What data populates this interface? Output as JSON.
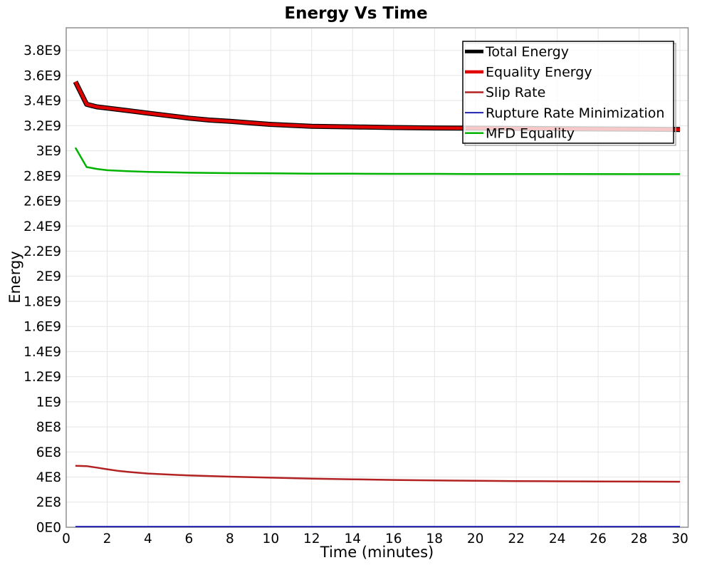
{
  "chart_data": {
    "type": "line",
    "title": "Energy Vs Time",
    "xlabel": "Time (minutes)",
    "ylabel": "Energy",
    "xlim": [
      0,
      30.4
    ],
    "ylim": [
      0,
      3980000000.0
    ],
    "grid": true,
    "legend_position": "top-right",
    "colors": {
      "grid": "#e5e5e5",
      "plot_border": "#8f8f8f",
      "legend_border": "#000000",
      "legend_shadow": "#aaaaaa"
    },
    "x_ticks": [
      {
        "label": "0",
        "value": 0
      },
      {
        "label": "2",
        "value": 2
      },
      {
        "label": "4",
        "value": 4
      },
      {
        "label": "6",
        "value": 6
      },
      {
        "label": "8",
        "value": 8
      },
      {
        "label": "10",
        "value": 10
      },
      {
        "label": "12",
        "value": 12
      },
      {
        "label": "14",
        "value": 14
      },
      {
        "label": "16",
        "value": 16
      },
      {
        "label": "18",
        "value": 18
      },
      {
        "label": "20",
        "value": 20
      },
      {
        "label": "22",
        "value": 22
      },
      {
        "label": "24",
        "value": 24
      },
      {
        "label": "26",
        "value": 26
      },
      {
        "label": "28",
        "value": 28
      },
      {
        "label": "30",
        "value": 30
      }
    ],
    "y_ticks": [
      {
        "label": "0E0",
        "value": 0
      },
      {
        "label": "2E8",
        "value": 200000000.0
      },
      {
        "label": "4E8",
        "value": 400000000.0
      },
      {
        "label": "6E8",
        "value": 600000000.0
      },
      {
        "label": "8E8",
        "value": 800000000.0
      },
      {
        "label": "1E9",
        "value": 1000000000.0
      },
      {
        "label": "1.2E9",
        "value": 1200000000.0
      },
      {
        "label": "1.4E9",
        "value": 1400000000.0
      },
      {
        "label": "1.6E9",
        "value": 1600000000.0
      },
      {
        "label": "1.8E9",
        "value": 1800000000.0
      },
      {
        "label": "2E9",
        "value": 2000000000.0
      },
      {
        "label": "2.2E9",
        "value": 2200000000.0
      },
      {
        "label": "2.4E9",
        "value": 2400000000.0
      },
      {
        "label": "2.6E9",
        "value": 2600000000.0
      },
      {
        "label": "2.8E9",
        "value": 2800000000.0
      },
      {
        "label": "3E9",
        "value": 3000000000.0
      },
      {
        "label": "3.2E9",
        "value": 3200000000.0
      },
      {
        "label": "3.4E9",
        "value": 3400000000.0
      },
      {
        "label": "3.6E9",
        "value": 3600000000.0
      },
      {
        "label": "3.8E9",
        "value": 3800000000.0
      }
    ],
    "series": [
      {
        "name": "Total Energy",
        "color": "#000000",
        "line_width": 7,
        "x": [
          0.45,
          1,
          1.5,
          2,
          3,
          4,
          5,
          6,
          7,
          8,
          10,
          12,
          14,
          16,
          18,
          20,
          22,
          24,
          26,
          28,
          30
        ],
        "y": [
          3550000000.0,
          3370000000.0,
          3350000000.0,
          3340000000.0,
          3320000000.0,
          3300000000.0,
          3280000000.0,
          3260000000.0,
          3245000000.0,
          3235000000.0,
          3210000000.0,
          3195000000.0,
          3190000000.0,
          3185000000.0,
          3182000000.0,
          3180000000.0,
          3178000000.0,
          3176000000.0,
          3174000000.0,
          3172000000.0,
          3170000000.0
        ]
      },
      {
        "name": "Equality Energy",
        "color": "#e00000",
        "line_width": 4.5,
        "x": [
          0.45,
          1,
          1.5,
          2,
          3,
          4,
          5,
          6,
          7,
          8,
          10,
          12,
          14,
          16,
          18,
          20,
          22,
          24,
          26,
          28,
          30
        ],
        "y": [
          3550000000.0,
          3370000000.0,
          3350000000.0,
          3340000000.0,
          3320000000.0,
          3300000000.0,
          3280000000.0,
          3260000000.0,
          3245000000.0,
          3235000000.0,
          3210000000.0,
          3195000000.0,
          3190000000.0,
          3185000000.0,
          3182000000.0,
          3180000000.0,
          3178000000.0,
          3176000000.0,
          3174000000.0,
          3172000000.0,
          3170000000.0
        ]
      },
      {
        "name": "Slip Rate",
        "color": "#b22222",
        "line_width": 2.5,
        "x": [
          0.45,
          1,
          1.5,
          2,
          2.5,
          3,
          4,
          5,
          6,
          7,
          8,
          10,
          12,
          14,
          16,
          18,
          20,
          22,
          24,
          26,
          28,
          30
        ],
        "y": [
          490000000.0,
          487000000.0,
          475000000.0,
          462000000.0,
          450000000.0,
          442000000.0,
          428000000.0,
          420000000.0,
          413000000.0,
          408000000.0,
          403000000.0,
          395000000.0,
          388000000.0,
          382000000.0,
          377000000.0,
          373000000.0,
          370000000.0,
          368000000.0,
          366000000.0,
          365000000.0,
          364000000.0,
          363000000.0
        ]
      },
      {
        "name": "Rupture Rate Minimization",
        "color": "#2222b2",
        "line_width": 2,
        "x": [
          0.45,
          30
        ],
        "y": [
          5000000.0,
          5000000.0
        ]
      },
      {
        "name": "MFD Equality",
        "color": "#00b300",
        "line_width": 2.5,
        "x": [
          0.45,
          1,
          1.5,
          2,
          3,
          4,
          6,
          8,
          10,
          12,
          14,
          16,
          18,
          20,
          24,
          28,
          30
        ],
        "y": [
          3025000000.0,
          2870000000.0,
          2855000000.0,
          2845000000.0,
          2837000000.0,
          2832000000.0,
          2825000000.0,
          2822000000.0,
          2820000000.0,
          2818000000.0,
          2817000000.0,
          2816000000.0,
          2816000000.0,
          2815000000.0,
          2815000000.0,
          2814000000.0,
          2814000000.0
        ]
      }
    ]
  }
}
